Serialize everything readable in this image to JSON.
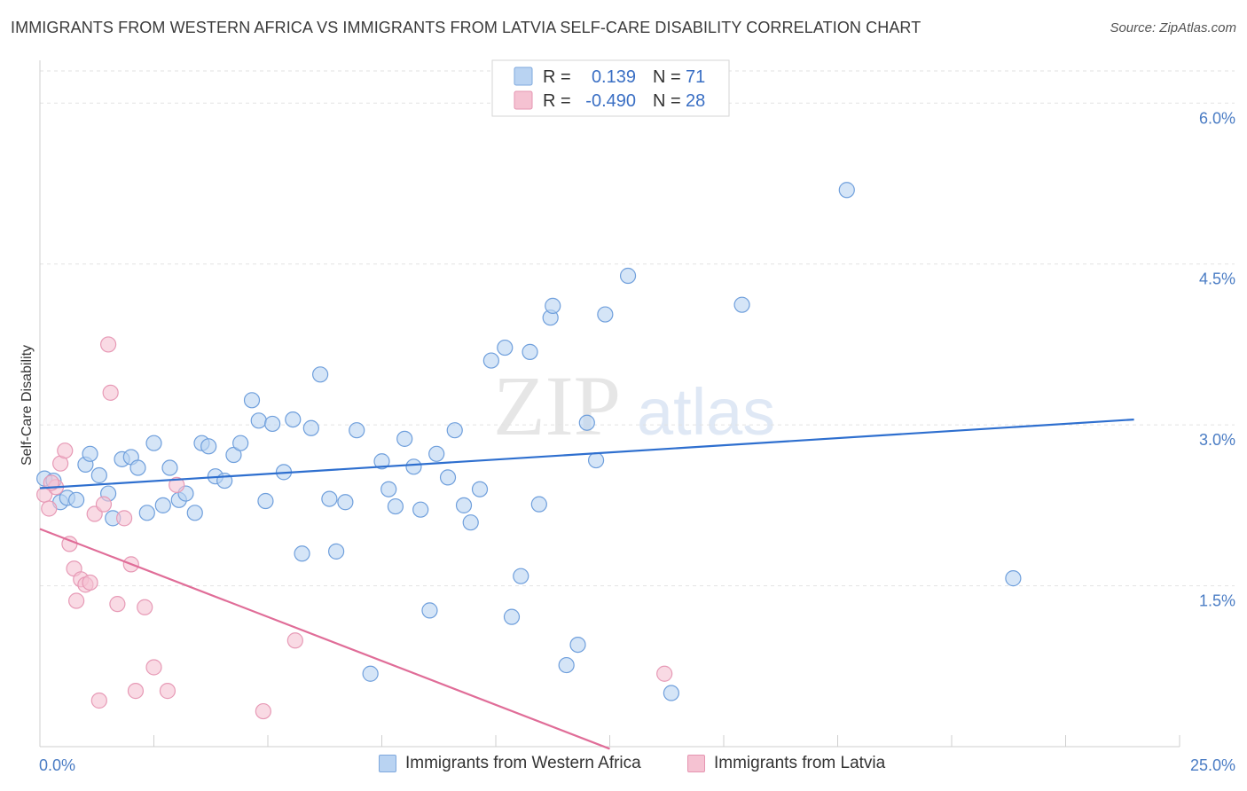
{
  "title": "IMMIGRANTS FROM WESTERN AFRICA VS IMMIGRANTS FROM LATVIA SELF-CARE DISABILITY CORRELATION CHART",
  "source": "Source: ZipAtlas.com",
  "watermark": {
    "zip": "ZIP",
    "atlas": "atlas"
  },
  "colors": {
    "blue": "#4a86d4",
    "blue_fill": "#b9d3f2",
    "pink": "#e0739a",
    "pink_fill": "#f5c2d2",
    "axis_label": "#4a7cc4"
  },
  "legend": {
    "rows": [
      {
        "r_label": "R =",
        "r_value": "0.139",
        "n_label": "N =",
        "n_value": "71",
        "series": "blue"
      },
      {
        "r_label": "R =",
        "r_value": "-0.490",
        "n_label": "N =",
        "n_value": "28",
        "series": "pink"
      }
    ]
  },
  "bottom_legend": {
    "blue_label": "Immigrants from Western Africa",
    "pink_label": "Immigrants from Latvia"
  },
  "chart_data": {
    "type": "scatter",
    "title": "IMMIGRANTS FROM WESTERN AFRICA VS IMMIGRANTS FROM LATVIA SELF-CARE DISABILITY CORRELATION CHART",
    "xlabel": "",
    "ylabel": "Self-Care Disability",
    "xlim": [
      0,
      25
    ],
    "ylim": [
      0,
      6.3
    ],
    "x_tick_labels": [
      "0.0%",
      "25.0%"
    ],
    "y_ticks": [
      1.5,
      3.0,
      4.5,
      6.0
    ],
    "y_tick_labels": [
      "1.5%",
      "3.0%",
      "4.5%",
      "6.0%"
    ],
    "grid": "horizontal dashed",
    "series": [
      {
        "name": "Immigrants from Western Africa",
        "color": "blue",
        "trend": {
          "x": [
            0,
            24.0
          ],
          "y": [
            2.41,
            3.05
          ]
        },
        "points": [
          [
            0.1,
            2.5
          ],
          [
            0.3,
            2.48
          ],
          [
            0.45,
            2.28
          ],
          [
            0.6,
            2.32
          ],
          [
            0.8,
            2.3
          ],
          [
            1.0,
            2.63
          ],
          [
            1.1,
            2.73
          ],
          [
            1.3,
            2.53
          ],
          [
            1.5,
            2.36
          ],
          [
            1.6,
            2.13
          ],
          [
            1.8,
            2.68
          ],
          [
            2.0,
            2.7
          ],
          [
            2.15,
            2.6
          ],
          [
            2.35,
            2.18
          ],
          [
            2.5,
            2.83
          ],
          [
            2.7,
            2.25
          ],
          [
            2.85,
            2.6
          ],
          [
            3.05,
            2.3
          ],
          [
            3.2,
            2.36
          ],
          [
            3.4,
            2.18
          ],
          [
            3.55,
            2.83
          ],
          [
            3.7,
            2.8
          ],
          [
            3.85,
            2.52
          ],
          [
            4.05,
            2.48
          ],
          [
            4.25,
            2.72
          ],
          [
            4.4,
            2.83
          ],
          [
            4.65,
            3.23
          ],
          [
            4.8,
            3.04
          ],
          [
            4.95,
            2.29
          ],
          [
            5.1,
            3.01
          ],
          [
            5.35,
            2.56
          ],
          [
            5.55,
            3.05
          ],
          [
            5.75,
            1.8
          ],
          [
            5.95,
            2.97
          ],
          [
            6.15,
            3.47
          ],
          [
            6.35,
            2.31
          ],
          [
            6.5,
            1.82
          ],
          [
            6.7,
            2.28
          ],
          [
            6.95,
            2.95
          ],
          [
            7.25,
            0.68
          ],
          [
            7.5,
            2.66
          ],
          [
            7.65,
            2.4
          ],
          [
            7.8,
            2.24
          ],
          [
            8.0,
            2.87
          ],
          [
            8.2,
            2.61
          ],
          [
            8.35,
            2.21
          ],
          [
            8.55,
            1.27
          ],
          [
            8.7,
            2.73
          ],
          [
            8.95,
            2.51
          ],
          [
            9.1,
            2.95
          ],
          [
            9.3,
            2.25
          ],
          [
            9.45,
            2.09
          ],
          [
            9.65,
            2.4
          ],
          [
            9.9,
            3.6
          ],
          [
            10.2,
            3.72
          ],
          [
            10.35,
            1.21
          ],
          [
            10.55,
            1.59
          ],
          [
            10.75,
            3.68
          ],
          [
            10.95,
            2.26
          ],
          [
            11.2,
            4.0
          ],
          [
            11.25,
            4.11
          ],
          [
            11.55,
            0.76
          ],
          [
            11.8,
            0.95
          ],
          [
            12.0,
            3.02
          ],
          [
            12.2,
            2.67
          ],
          [
            12.4,
            4.03
          ],
          [
            12.9,
            4.39
          ],
          [
            13.85,
            0.5
          ],
          [
            15.4,
            4.12
          ],
          [
            17.7,
            5.19
          ],
          [
            21.35,
            1.57
          ]
        ]
      },
      {
        "name": "Immigrants from Latvia",
        "color": "pink",
        "trend": {
          "x": [
            0,
            12.5
          ],
          "y": [
            2.03,
            -0.02
          ]
        },
        "points": [
          [
            0.1,
            2.35
          ],
          [
            0.2,
            2.22
          ],
          [
            0.35,
            2.42
          ],
          [
            0.45,
            2.64
          ],
          [
            0.55,
            2.76
          ],
          [
            0.65,
            1.89
          ],
          [
            0.75,
            1.66
          ],
          [
            0.8,
            1.36
          ],
          [
            0.9,
            1.56
          ],
          [
            1.0,
            1.51
          ],
          [
            1.1,
            1.53
          ],
          [
            1.2,
            2.17
          ],
          [
            1.3,
            0.43
          ],
          [
            1.4,
            2.26
          ],
          [
            1.5,
            3.75
          ],
          [
            1.55,
            3.3
          ],
          [
            1.7,
            1.33
          ],
          [
            1.85,
            2.13
          ],
          [
            2.0,
            1.7
          ],
          [
            2.1,
            0.52
          ],
          [
            2.3,
            1.3
          ],
          [
            2.5,
            0.74
          ],
          [
            2.8,
            0.52
          ],
          [
            3.0,
            2.44
          ],
          [
            4.9,
            0.33
          ],
          [
            5.6,
            0.99
          ],
          [
            13.7,
            0.68
          ],
          [
            0.25,
            2.46
          ]
        ]
      }
    ]
  }
}
